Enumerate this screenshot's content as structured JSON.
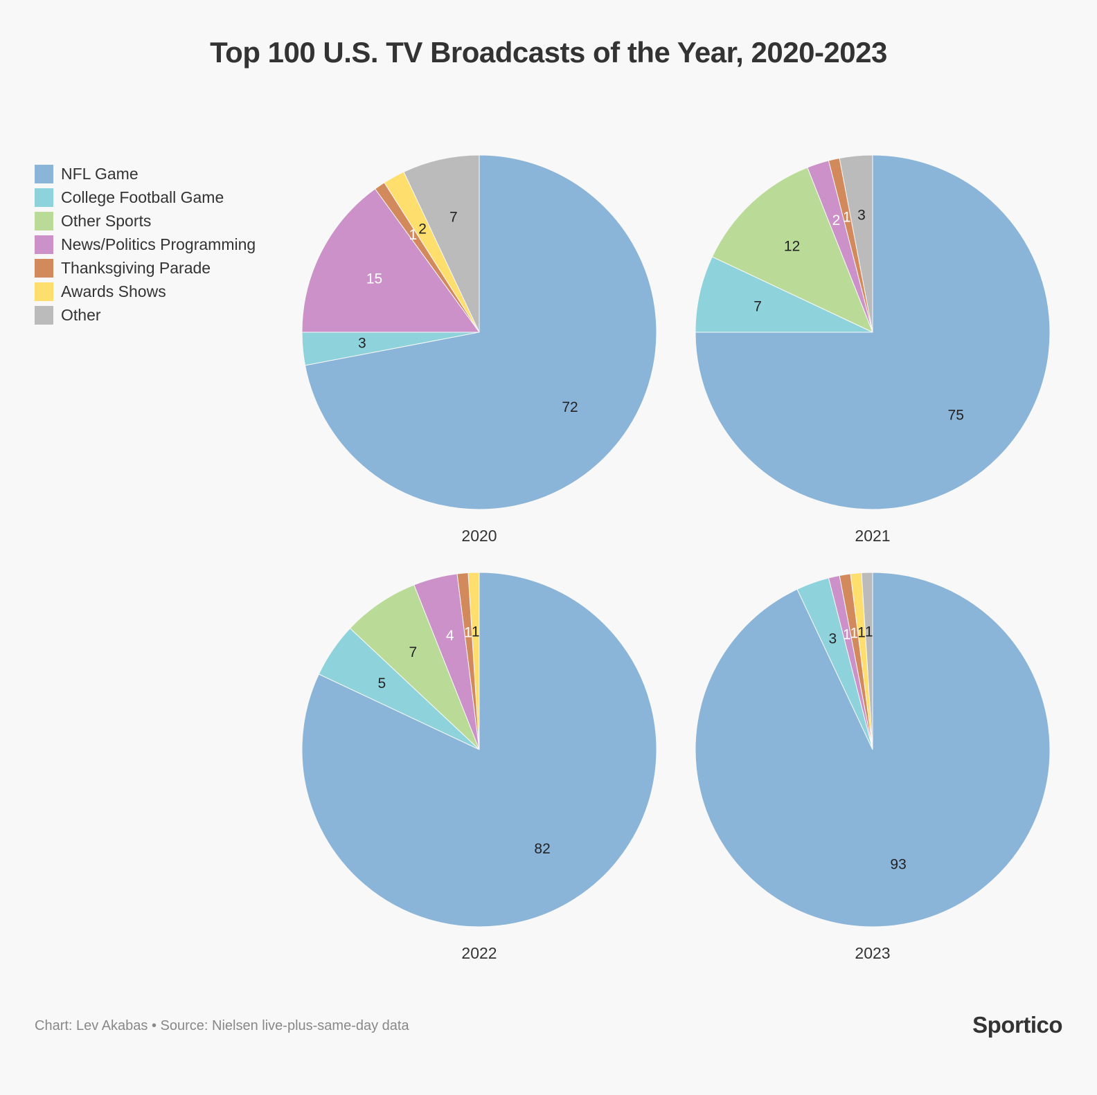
{
  "title": "Top 100 U.S. TV Broadcasts of the Year, 2020-2023",
  "footer": {
    "credit": "Chart: Lev Akabas • Source: Nielsen live-plus-same-day data",
    "brand": "Sportico"
  },
  "chart_data": {
    "type": "pie",
    "title": "Top 100 U.S. TV Broadcasts of the Year, 2020-2023",
    "legend_position": "top-left",
    "categories": [
      "NFL Game",
      "College Football Game",
      "Other Sports",
      "News/Politics Programming",
      "Thanksgiving Parade",
      "Awards Shows",
      "Other"
    ],
    "colors": [
      "#8ab4d8",
      "#8ed3db",
      "#badb98",
      "#cb91c8",
      "#d2895c",
      "#fede6c",
      "#bbbbbb"
    ],
    "label_colors": [
      "#222222",
      "#222222",
      "#222222",
      "#ffffff",
      "#ffffff",
      "#222222",
      "#222222"
    ],
    "charts": [
      {
        "label": "2020",
        "values": [
          72,
          3,
          0,
          15,
          1,
          2,
          7
        ]
      },
      {
        "label": "2021",
        "values": [
          75,
          7,
          12,
          2,
          1,
          0,
          3
        ]
      },
      {
        "label": "2022",
        "values": [
          82,
          5,
          7,
          4,
          1,
          1,
          0
        ]
      },
      {
        "label": "2023",
        "values": [
          93,
          3,
          0,
          1,
          1,
          1,
          1
        ]
      }
    ]
  }
}
